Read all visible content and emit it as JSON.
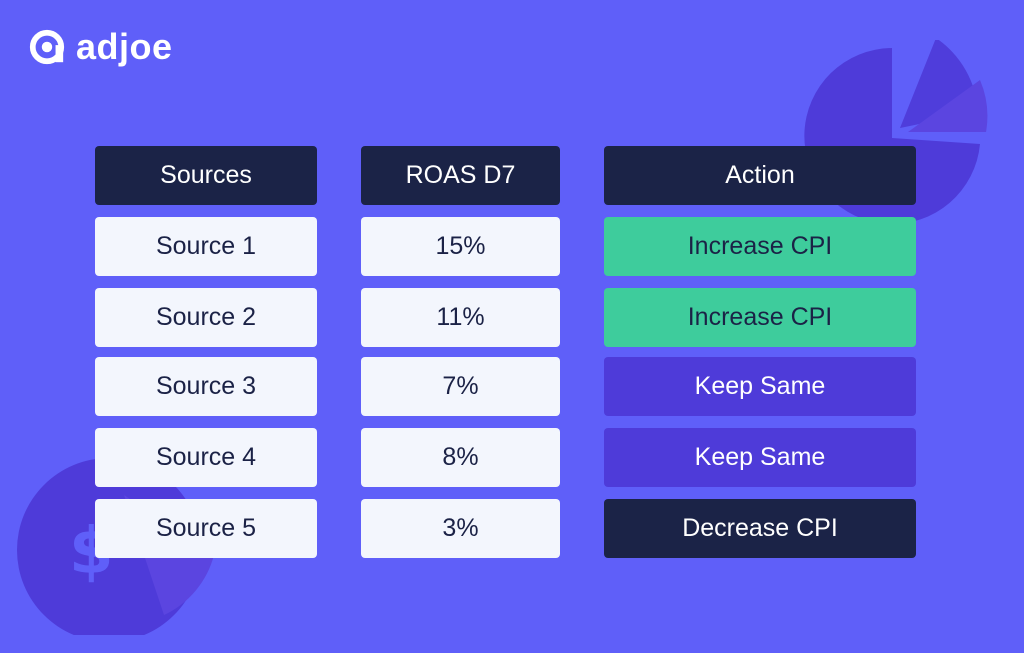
{
  "brand": {
    "name": "adjoe",
    "logo_icon": "adjoe-logo-icon",
    "colors": {
      "background": "#5f5ff9",
      "header": "#1b2347",
      "increase": "#3ecc9c",
      "keep": "#4e3bd9",
      "decrease": "#1b2347",
      "cell": "#f3f6fd"
    }
  },
  "decorations": {
    "top_right": "pie-chart-icon",
    "bottom_left": "dollar-coin-icon"
  },
  "table": {
    "headers": {
      "sources": "Sources",
      "roas": "ROAS D7",
      "action": "Action"
    },
    "rows": [
      {
        "source": "Source 1",
        "roas": "15%",
        "action": "Increase CPI",
        "status": "increase"
      },
      {
        "source": "Source 2",
        "roas": "11%",
        "action": "Increase CPI",
        "status": "increase"
      },
      {
        "source": "Source 3",
        "roas": "7%",
        "action": "Keep Same",
        "status": "keep"
      },
      {
        "source": "Source 4",
        "roas": "8%",
        "action": "Keep Same",
        "status": "keep"
      },
      {
        "source": "Source 5",
        "roas": "3%",
        "action": "Decrease CPI",
        "status": "decrease"
      }
    ]
  }
}
